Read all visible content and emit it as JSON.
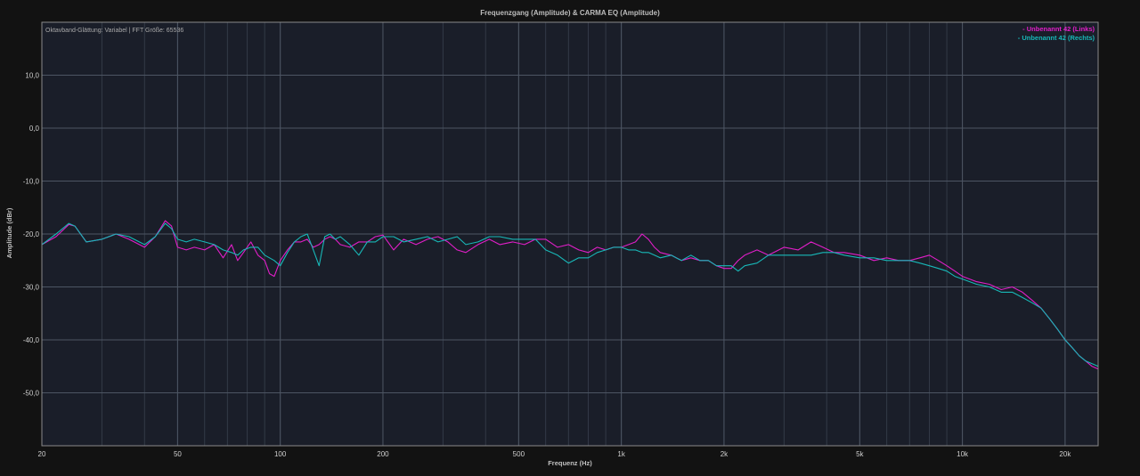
{
  "chart_data": {
    "type": "line",
    "title": "Frequenzgang (Amplitude) & CARMA EQ (Amplitude)",
    "subtitle": "Oktavband-Glättung: Variabel | FFT Größe: 65536",
    "xlabel": "Frequenz (Hz)",
    "ylabel": "Amplitude (dBr)",
    "x_scale": "log",
    "xlim": [
      20,
      25000
    ],
    "ylim": [
      -60,
      20
    ],
    "x_ticks": [
      {
        "value": 20,
        "label": "20"
      },
      {
        "value": 50,
        "label": "50"
      },
      {
        "value": 100,
        "label": "100"
      },
      {
        "value": 200,
        "label": "200"
      },
      {
        "value": 500,
        "label": "500"
      },
      {
        "value": 1000,
        "label": "1k"
      },
      {
        "value": 2000,
        "label": "2k"
      },
      {
        "value": 5000,
        "label": "5k"
      },
      {
        "value": 10000,
        "label": "10k"
      },
      {
        "value": 20000,
        "label": "20k"
      }
    ],
    "y_ticks": [
      {
        "value": 10,
        "label": "10,0"
      },
      {
        "value": 0,
        "label": "0,0"
      },
      {
        "value": -10,
        "label": "-10,0"
      },
      {
        "value": -20,
        "label": "-20,0"
      },
      {
        "value": -30,
        "label": "-30,0"
      },
      {
        "value": -40,
        "label": "-40,0"
      },
      {
        "value": -50,
        "label": "-50,0"
      }
    ],
    "grid": true,
    "legend_position": "top-right",
    "series": [
      {
        "name": "- Unbenannt 42 (Links)",
        "color": "#e11ec8",
        "x": [
          20,
          22,
          24,
          25,
          27,
          30,
          33,
          36,
          40,
          43,
          46,
          48,
          50,
          53,
          56,
          60,
          64,
          68,
          72,
          75,
          78,
          82,
          86,
          90,
          93,
          96,
          100,
          105,
          110,
          115,
          120,
          125,
          130,
          135,
          140,
          145,
          150,
          160,
          170,
          180,
          190,
          200,
          215,
          230,
          250,
          270,
          290,
          310,
          330,
          350,
          380,
          410,
          440,
          480,
          520,
          560,
          600,
          650,
          700,
          750,
          800,
          850,
          900,
          950,
          1000,
          1050,
          1100,
          1150,
          1200,
          1250,
          1300,
          1400,
          1500,
          1600,
          1700,
          1800,
          1900,
          2000,
          2100,
          2200,
          2300,
          2500,
          2700,
          3000,
          3300,
          3600,
          3900,
          4200,
          4500,
          5000,
          5500,
          6000,
          6500,
          7000,
          7500,
          8000,
          8500,
          9000,
          9500,
          10000,
          11000,
          12000,
          13000,
          14000,
          15000,
          16000,
          17000,
          18000,
          19000,
          20000,
          21000,
          22000,
          23000,
          24000,
          25000
        ],
        "y": [
          -22,
          -20.5,
          -18.2,
          -18.5,
          -21.5,
          -21,
          -20,
          -21,
          -22.5,
          -20.5,
          -17.5,
          -18.5,
          -22.5,
          -23,
          -22.5,
          -23,
          -22,
          -24.5,
          -22,
          -25,
          -23.5,
          -21.5,
          -24,
          -25,
          -27.5,
          -28,
          -25,
          -23,
          -21.5,
          -21.5,
          -21,
          -22.5,
          -22,
          -21,
          -20.5,
          -21,
          -22,
          -22.5,
          -21.5,
          -21.5,
          -20.5,
          -20.2,
          -23,
          -21,
          -22,
          -21,
          -20.5,
          -21.5,
          -23,
          -23.5,
          -22,
          -21,
          -22,
          -21.5,
          -22,
          -21,
          -21,
          -22.5,
          -22,
          -23,
          -23.5,
          -22.5,
          -23,
          -22.5,
          -22.5,
          -22,
          -21.5,
          -20,
          -21,
          -22.5,
          -23.5,
          -24,
          -25,
          -24.5,
          -25,
          -25,
          -26,
          -26.5,
          -26.5,
          -25,
          -24,
          -23,
          -24,
          -22.5,
          -23,
          -21.5,
          -22.5,
          -23.5,
          -23.5,
          -24,
          -25,
          -24.5,
          -25,
          -25,
          -24.5,
          -24,
          -25,
          -26,
          -27,
          -28,
          -29,
          -29.5,
          -30.5,
          -30,
          -31,
          -32.5,
          -34,
          -36,
          -38,
          -40,
          -41.5,
          -43,
          -44,
          -45,
          -45.5
        ]
      },
      {
        "name": "- Unbenannt 42 (Rechts)",
        "color": "#18b8b8",
        "x": [
          20,
          22,
          24,
          25,
          27,
          30,
          33,
          36,
          40,
          43,
          46,
          48,
          50,
          53,
          56,
          60,
          64,
          68,
          72,
          75,
          78,
          82,
          86,
          90,
          93,
          96,
          100,
          105,
          110,
          115,
          120,
          125,
          130,
          135,
          140,
          145,
          150,
          160,
          170,
          180,
          190,
          200,
          215,
          230,
          250,
          270,
          290,
          310,
          330,
          350,
          380,
          410,
          440,
          480,
          520,
          560,
          600,
          650,
          700,
          750,
          800,
          850,
          900,
          950,
          1000,
          1050,
          1100,
          1150,
          1200,
          1250,
          1300,
          1400,
          1500,
          1600,
          1700,
          1800,
          1900,
          2000,
          2100,
          2200,
          2300,
          2500,
          2700,
          3000,
          3300,
          3600,
          3900,
          4200,
          4500,
          5000,
          5500,
          6000,
          6500,
          7000,
          7500,
          8000,
          8500,
          9000,
          9500,
          10000,
          11000,
          12000,
          13000,
          14000,
          15000,
          16000,
          17000,
          18000,
          19000,
          20000,
          21000,
          22000,
          23000,
          24000,
          25000
        ],
        "y": [
          -22,
          -20,
          -18,
          -18.5,
          -21.5,
          -21,
          -20,
          -20.5,
          -22,
          -20.5,
          -18,
          -19,
          -21,
          -21.5,
          -21,
          -21.5,
          -22,
          -23,
          -23.5,
          -24,
          -23,
          -22.5,
          -22.5,
          -24,
          -24.5,
          -25,
          -26,
          -23.5,
          -21.5,
          -20.5,
          -20,
          -23,
          -26,
          -20.5,
          -20,
          -21,
          -20.5,
          -22,
          -24,
          -21.5,
          -21.5,
          -20.5,
          -20.5,
          -21.5,
          -21,
          -20.5,
          -21.5,
          -21,
          -20.5,
          -22,
          -21.5,
          -20.5,
          -20.5,
          -21,
          -21,
          -21,
          -23,
          -24,
          -25.5,
          -24.5,
          -24.5,
          -23.5,
          -23,
          -22.5,
          -22.5,
          -23,
          -23,
          -23.5,
          -23.5,
          -24,
          -24.5,
          -24,
          -25,
          -24,
          -25,
          -25,
          -26,
          -26,
          -26,
          -27,
          -26,
          -25.5,
          -24,
          -24,
          -24,
          -24,
          -23.5,
          -23.5,
          -24,
          -24.5,
          -24.5,
          -25,
          -25,
          -25,
          -25.5,
          -26,
          -26.5,
          -27,
          -28,
          -28.5,
          -29.5,
          -30,
          -31,
          -31,
          -32,
          -33,
          -34,
          -36,
          -38,
          -40,
          -41.5,
          -43,
          -44,
          -44.5,
          -45
        ]
      }
    ]
  }
}
